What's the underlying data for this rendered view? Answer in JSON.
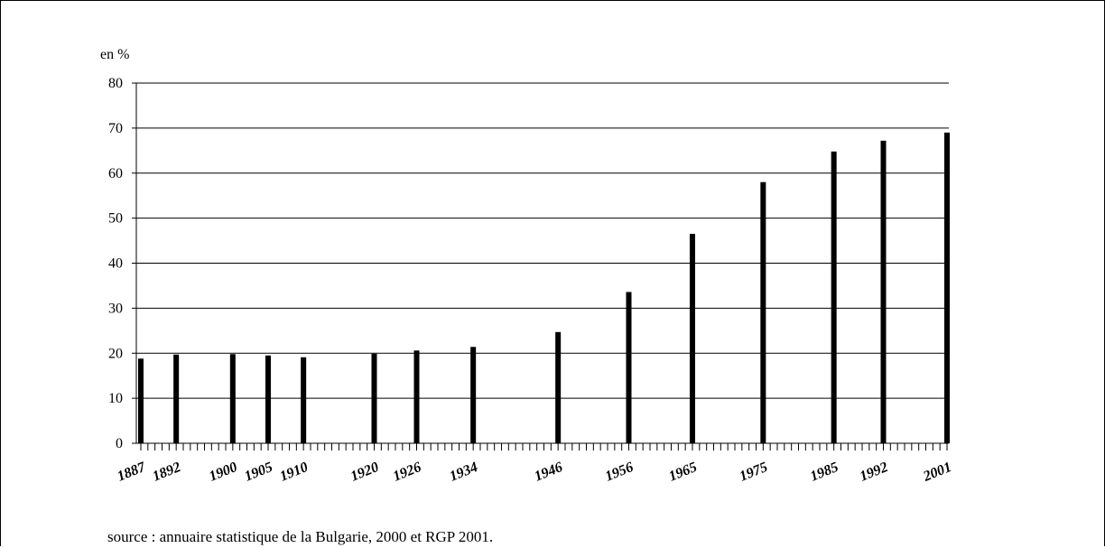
{
  "chart_data": {
    "type": "bar",
    "title": "",
    "xlabel": "",
    "ylabel": "en %",
    "ylim": [
      0,
      80
    ],
    "yticks": [
      0,
      10,
      20,
      30,
      40,
      50,
      60,
      70,
      80
    ],
    "grid": true,
    "x_range": [
      1887,
      2001
    ],
    "categories": [
      "1887",
      "1892",
      "1900",
      "1905",
      "1910",
      "1920",
      "1926",
      "1934",
      "1946",
      "1956",
      "1965",
      "1975",
      "1985",
      "1992",
      "2001"
    ],
    "values": [
      18.8,
      19.7,
      19.8,
      19.5,
      19.1,
      19.9,
      20.6,
      21.4,
      24.7,
      33.6,
      46.5,
      58.0,
      64.8,
      67.2,
      69.0
    ],
    "bar_color": "#000000",
    "source": "source : annuaire statistique de la Bulgarie, 2000 et RGP 2001."
  }
}
